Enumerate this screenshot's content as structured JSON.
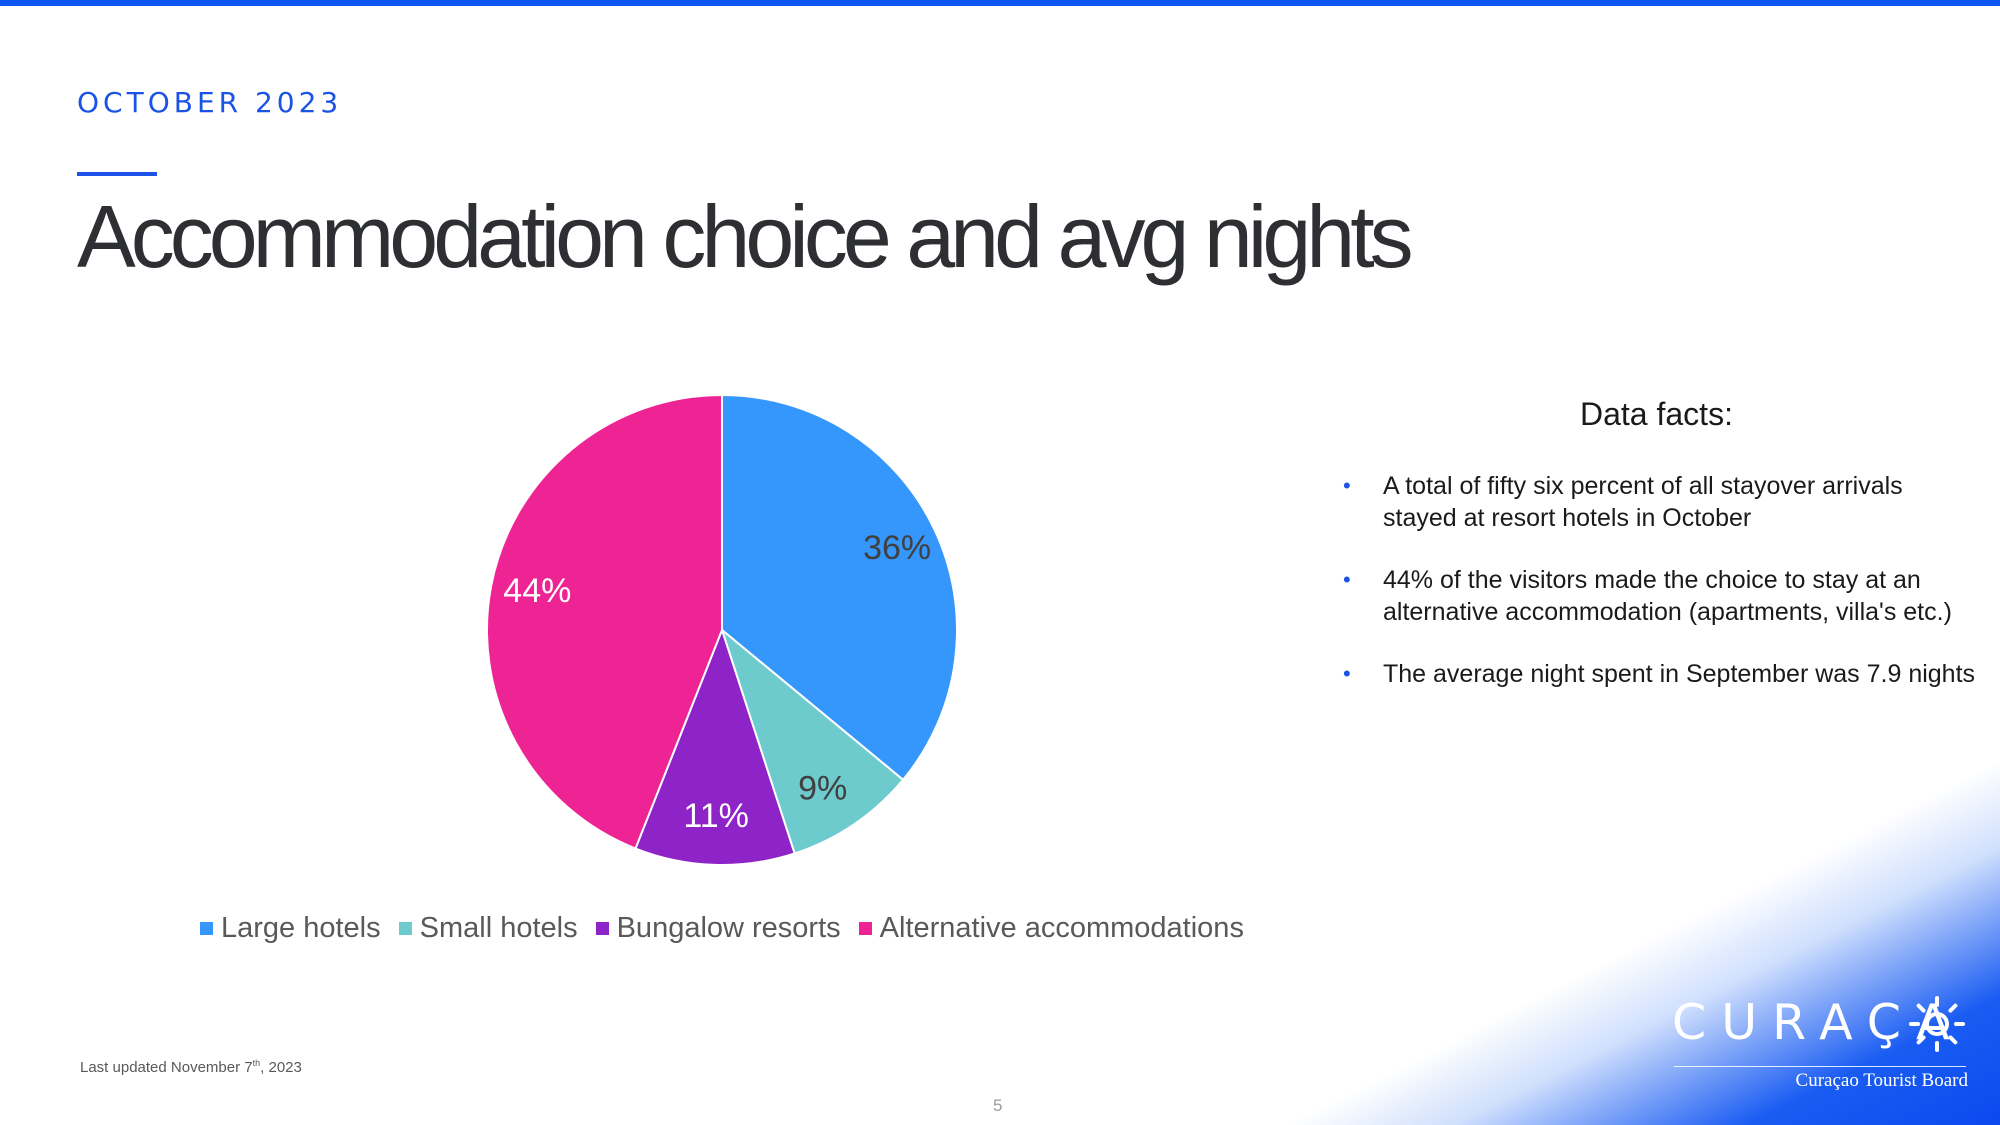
{
  "slide": {
    "month": "OCTOBER 2023",
    "title": "Accommodation choice and avg nights",
    "page_number": "5",
    "last_updated_prefix": "Last updated November 7",
    "last_updated_suffix": "th",
    "last_updated_year": ", 2023"
  },
  "facts": {
    "heading": "Data facts:",
    "items": [
      "A total of fifty six percent of all stayover arrivals stayed at resort hotels in October",
      "44% of the visitors made the choice to stay at an alternative accommodation (apartments, villa's etc.)",
      "The average night spent in September was 7.9 nights"
    ]
  },
  "logo": {
    "word": "CURAÇA",
    "subtitle": "Curaçao Tourist Board"
  },
  "colors": {
    "accent": "#1b53e6",
    "top_bar": "#0d55f0"
  },
  "chart_data": {
    "type": "pie",
    "categories": [
      "Large hotels",
      "Small hotels",
      "Bungalow resorts",
      "Alternative accommodations"
    ],
    "values": [
      36,
      9,
      11,
      44
    ],
    "labels": [
      "36%",
      "9%",
      "11%",
      "44%"
    ],
    "colors": [
      "#3597fb",
      "#6dcbcd",
      "#8e24c8",
      "#ee2394"
    ],
    "label_colors": [
      "#404040",
      "#404040",
      "#ffffff",
      "#ffffff"
    ],
    "legend_position": "bottom"
  }
}
